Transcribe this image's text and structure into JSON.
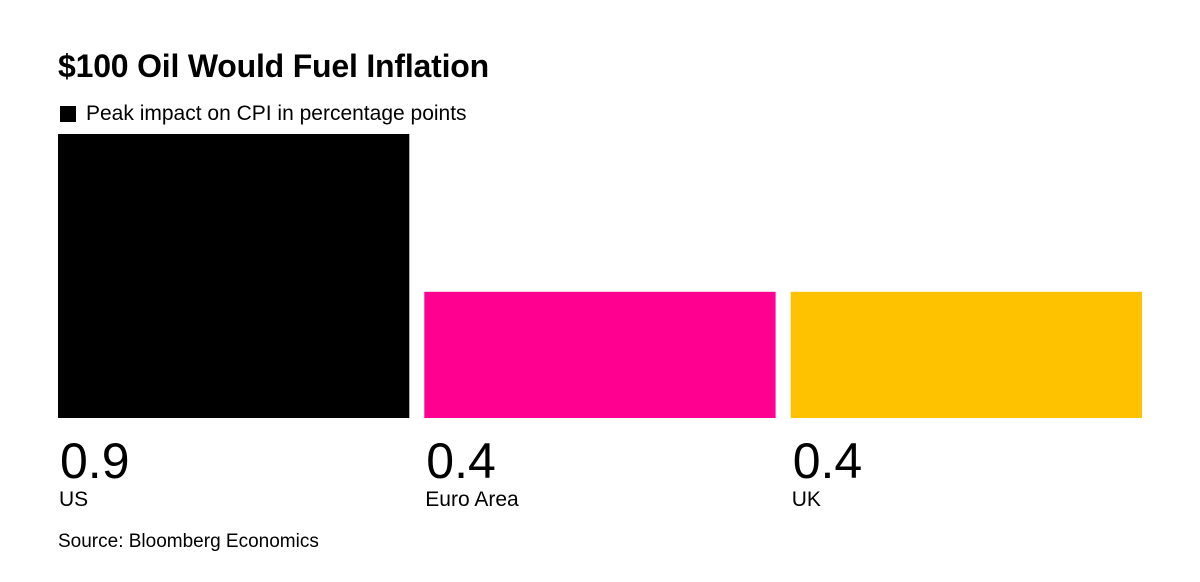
{
  "chart_data": {
    "type": "bar",
    "title": "$100 Oil Would Fuel Inflation",
    "legend": {
      "label": "Peak impact on CPI in percentage points",
      "color": "#000000",
      "placement": "top-left"
    },
    "categories": [
      "US",
      "Euro Area",
      "UK"
    ],
    "values": [
      0.9,
      0.4,
      0.4
    ],
    "value_labels": [
      "0.9",
      "0.4",
      "0.4"
    ],
    "colors": [
      "#000000",
      "#ff0090",
      "#ffc200"
    ],
    "ylim": [
      0,
      0.9
    ],
    "grid": false,
    "source": "Source: Bloomberg Economics"
  }
}
